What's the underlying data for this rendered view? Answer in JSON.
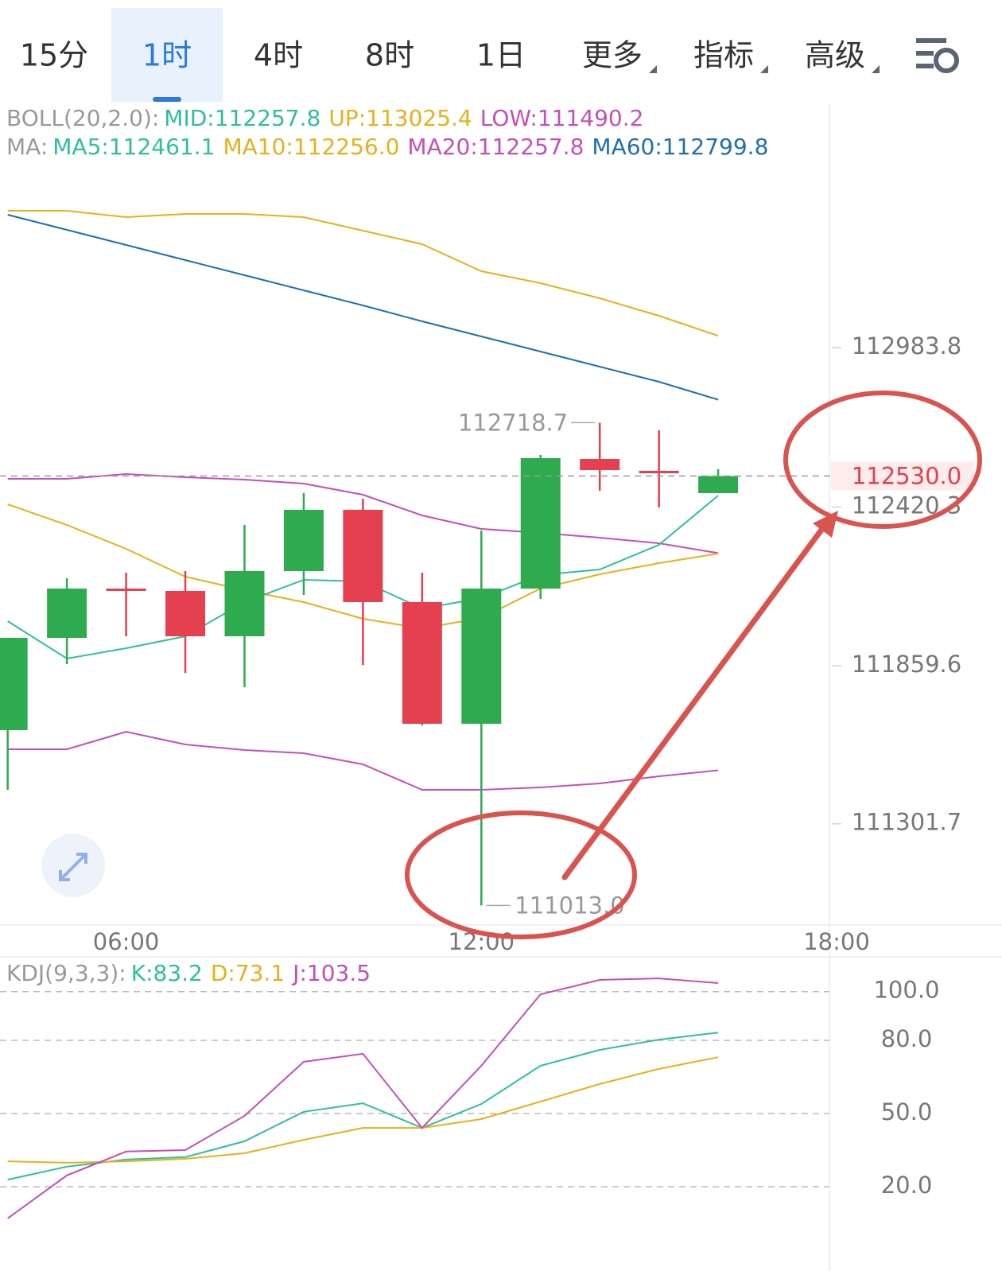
{
  "tabs": {
    "items": [
      "15分",
      "1时",
      "4时",
      "8时",
      "1日",
      "更多",
      "指标",
      "高级"
    ],
    "active": 1
  },
  "chart_data": [
    {
      "type": "candlestick",
      "legend_rows": [
        {
          "label": "BOLL(20,2.0):",
          "items": [
            {
              "text": "MID:112257.8",
              "color": "#2fbf9f"
            },
            {
              "text": "UP:113025.4",
              "color": "#e8b01a"
            },
            {
              "text": "LOW:111490.2",
              "color": "#c64fb5"
            }
          ]
        },
        {
          "label": "MA:",
          "items": [
            {
              "text": "MA5:112461.1",
              "color": "#2fbf9f"
            },
            {
              "text": "MA10:112256.0",
              "color": "#e8b01a"
            },
            {
              "text": "MA20:112257.8",
              "color": "#c64fb5"
            },
            {
              "text": "MA60:112799.8",
              "color": "#1f6fb0"
            }
          ]
        }
      ],
      "x": [
        4,
        5,
        6,
        7,
        8,
        9,
        10,
        11,
        12,
        13,
        14,
        15,
        16
      ],
      "xlim": [
        3.87,
        18.0
      ],
      "xticks": [
        {
          "value": 6,
          "label": "06:00"
        },
        {
          "value": 12,
          "label": "12:00"
        },
        {
          "value": 18,
          "label": "18:00"
        }
      ],
      "ylim": [
        110943.7,
        113846.5
      ],
      "yticks": [
        112983.8,
        112420.3,
        111859.6,
        111301.7
      ],
      "open": [
        111632.2,
        111958.2,
        112132.4,
        112123.9,
        111963.8,
        112194.2,
        112410.6,
        112084.6,
        111654.7,
        112132.4,
        112590.4,
        112548.3,
        112469.6
      ],
      "high": [
        111958.2,
        112168.9,
        112188.6,
        112194.2,
        112357.2,
        112469.6,
        112449.9,
        112188.6,
        112337.5,
        112604.4,
        112718.7,
        112691.6,
        112553.9
      ],
      "low": [
        111421.4,
        111865.4,
        111963.8,
        111834.5,
        111783.9,
        112109.9,
        111862.6,
        111649.1,
        111013.0,
        112095.8,
        112478.0,
        112419.0,
        112469.6
      ],
      "close": [
        111958.2,
        112132.4,
        112126.8,
        111963.8,
        112194.2,
        112410.6,
        112084.6,
        111654.7,
        112132.4,
        112593.2,
        112551.1,
        112539.8,
        112530.0
      ],
      "up_color": "#2eab4f",
      "down_color": "#e5404f",
      "series": [
        {
          "color": "#e8b01a",
          "values": [
            113467.1,
            113467.1,
            113444.6,
            113455.9,
            113455.9,
            113444.6,
            113396.9,
            113349.1,
            113253.6,
            113211.4,
            113158.0,
            113096.2,
            113025.4
          ]
        },
        {
          "color": "#1f6fb0",
          "values": [
            113453.1,
            113399.7,
            113346.3,
            113292.9,
            113239.5,
            113186.1,
            113132.7,
            113076.5,
            113023.1,
            112969.7,
            112916.3,
            112862.9,
            112799.8
          ]
        },
        {
          "color": "#c64fb5",
          "values": [
            112520.2,
            112520.2,
            112537.1,
            112525.8,
            112517.4,
            112503.4,
            112464.0,
            112391.0,
            112343.2,
            112329.2,
            112312.3,
            112292.6,
            112257.8
          ]
        },
        {
          "color": "#c64fb5",
          "values": [
            111564.8,
            111564.8,
            111626.6,
            111581.6,
            111561.9,
            111550.7,
            111511.4,
            111421.4,
            111421.4,
            111429.9,
            111443.9,
            111469.2,
            111490.2
          ]
        },
        {
          "color": "#e8b01a",
          "values": [
            112430.2,
            112357.2,
            112272.9,
            112174.5,
            112126.8,
            112084.6,
            112025.6,
            111991.9,
            112028.4,
            112132.4,
            112183.0,
            112222.3,
            112256.0
          ]
        },
        {
          "color": "#2fbf9f",
          "values": [
            112017.2,
            111885.1,
            111921.6,
            111963.8,
            112084.6,
            112163.3,
            112157.7,
            112062.1,
            112098.3,
            112180.1,
            112199.8,
            112286.9,
            112461.1
          ]
        }
      ],
      "last_price": {
        "value": 112530,
        "label": "112530.0"
      },
      "annotations": [
        {
          "x": 14,
          "value": 112718.7,
          "label": "112718.7",
          "side": "left"
        },
        {
          "x": 12,
          "value": 111013,
          "label": "111013.0",
          "side": "right"
        }
      ]
    },
    {
      "type": "line",
      "legend_rows": [
        {
          "label": "KDJ(9,3,3):",
          "items": [
            {
              "text": "K:83.2",
              "color": "#2fbf9f"
            },
            {
              "text": "D:73.1",
              "color": "#e8b01a"
            },
            {
              "text": "J:103.5",
              "color": "#c64fb5"
            }
          ]
        }
      ],
      "x": [
        4,
        5,
        6,
        7,
        8,
        9,
        10,
        11,
        12,
        13,
        14,
        15,
        16
      ],
      "xlim": [
        3.87,
        18.0
      ],
      "ylim": [
        -2.2,
        113.6
      ],
      "yticks": [
        {
          "value": 100,
          "label": "100.0"
        },
        {
          "value": 80,
          "label": "80.0"
        },
        {
          "value": 50,
          "label": "50.0"
        },
        {
          "value": 20,
          "label": "20.0"
        }
      ],
      "grid": true,
      "series": [
        {
          "color": "#2fbf9f",
          "values": [
            22.9,
            28.2,
            31.1,
            32.1,
            38.6,
            50.7,
            54.2,
            44.1,
            53.9,
            69.6,
            76.1,
            80.3,
            83.2
          ]
        },
        {
          "color": "#e8b01a",
          "values": [
            30.4,
            29.8,
            30.4,
            31.4,
            33.7,
            39.2,
            44.1,
            44.1,
            47.7,
            54.9,
            62.1,
            68.3,
            73.1
          ]
        },
        {
          "color": "#c64fb5",
          "values": [
            7.0,
            24.6,
            34.4,
            35.0,
            49.0,
            71.2,
            74.5,
            44.1,
            69.6,
            98.9,
            104.8,
            105.4,
            103.5
          ]
        }
      ]
    }
  ]
}
